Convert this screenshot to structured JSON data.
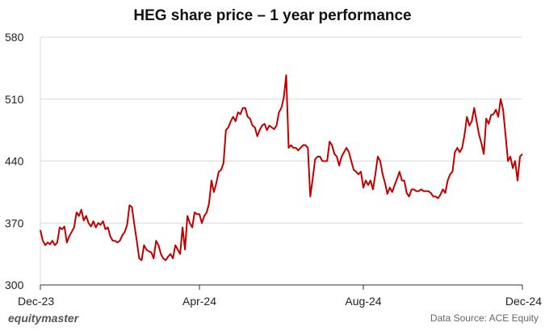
{
  "title": "HEG share price – 1 year performance",
  "brand": "equitymaster",
  "source": "Data Source: ACE Equity",
  "colors": {
    "line": "#c00000",
    "grid": "#d9d9d9",
    "axis": "#333333"
  },
  "chart_data": {
    "type": "line",
    "title": "HEG share price – 1 year performance",
    "xlabel": "",
    "ylabel": "",
    "ylim": [
      300,
      580
    ],
    "yticks": [
      300,
      370,
      440,
      510,
      580
    ],
    "xticks": [
      {
        "label": "Dec-23",
        "t": 0
      },
      {
        "label": "Apr-24",
        "t": 33
      },
      {
        "label": "Aug-24",
        "t": 67
      },
      {
        "label": "Dec-24",
        "t": 100
      }
    ],
    "grid": true,
    "series": [
      {
        "values": [
          [
            0,
            362
          ],
          [
            0.5,
            350
          ],
          [
            1,
            345
          ],
          [
            1.5,
            348
          ],
          [
            2,
            346
          ],
          [
            2.5,
            350
          ],
          [
            3,
            345
          ],
          [
            3.5,
            348
          ],
          [
            4,
            365
          ],
          [
            4.5,
            363
          ],
          [
            5,
            366
          ],
          [
            5.5,
            348
          ],
          [
            6,
            355
          ],
          [
            6.5,
            360
          ],
          [
            7,
            365
          ],
          [
            7.5,
            382
          ],
          [
            8,
            378
          ],
          [
            8.5,
            385
          ],
          [
            9,
            373
          ],
          [
            9.5,
            378
          ],
          [
            10,
            370
          ],
          [
            10.5,
            366
          ],
          [
            11,
            372
          ],
          [
            11.5,
            365
          ],
          [
            12,
            370
          ],
          [
            12.5,
            368
          ],
          [
            13,
            372
          ],
          [
            13.5,
            363
          ],
          [
            14,
            365
          ],
          [
            14.5,
            355
          ],
          [
            15,
            350
          ],
          [
            15.5,
            350
          ],
          [
            16,
            348
          ],
          [
            16.5,
            350
          ],
          [
            17,
            356
          ],
          [
            17.5,
            360
          ],
          [
            18,
            368
          ],
          [
            18.5,
            390
          ],
          [
            19,
            388
          ],
          [
            19.5,
            368
          ],
          [
            20,
            350
          ],
          [
            20.5,
            330
          ],
          [
            21,
            328
          ],
          [
            21.5,
            345
          ],
          [
            22,
            340
          ],
          [
            22.5,
            338
          ],
          [
            23,
            337
          ],
          [
            23.5,
            330
          ],
          [
            24,
            350
          ],
          [
            24.5,
            345
          ],
          [
            25,
            335
          ],
          [
            25.5,
            330
          ],
          [
            26,
            328
          ],
          [
            26.5,
            332
          ],
          [
            27,
            335
          ],
          [
            27.5,
            330
          ],
          [
            28,
            345
          ],
          [
            28.5,
            340
          ],
          [
            29,
            335
          ],
          [
            29.5,
            365
          ],
          [
            30,
            340
          ],
          [
            30.5,
            378
          ],
          [
            31,
            370
          ],
          [
            31.5,
            365
          ],
          [
            32,
            382
          ],
          [
            32.5,
            380
          ],
          [
            33,
            380
          ],
          [
            33.5,
            370
          ],
          [
            34,
            378
          ],
          [
            34.5,
            382
          ],
          [
            35,
            392
          ],
          [
            35.5,
            418
          ],
          [
            36,
            405
          ],
          [
            36.5,
            415
          ],
          [
            37,
            428
          ],
          [
            37.5,
            430
          ],
          [
            38,
            438
          ],
          [
            38.5,
            475
          ],
          [
            39,
            478
          ],
          [
            39.5,
            485
          ],
          [
            40,
            490
          ],
          [
            40.5,
            485
          ],
          [
            41,
            495
          ],
          [
            41.5,
            493
          ],
          [
            42,
            500
          ],
          [
            42.5,
            500
          ],
          [
            43,
            490
          ],
          [
            43.5,
            488
          ],
          [
            44,
            480
          ],
          [
            44.5,
            478
          ],
          [
            45,
            468
          ],
          [
            45.5,
            475
          ],
          [
            46,
            480
          ],
          [
            46.5,
            482
          ],
          [
            47,
            475
          ],
          [
            47.5,
            480
          ],
          [
            48,
            478
          ],
          [
            48.5,
            476
          ],
          [
            49,
            480
          ],
          [
            49.5,
            495
          ],
          [
            50,
            500
          ],
          [
            50.5,
            512
          ],
          [
            51,
            537
          ],
          [
            51.5,
            455
          ],
          [
            52,
            458
          ],
          [
            52.5,
            455
          ],
          [
            53,
            455
          ],
          [
            53.5,
            452
          ],
          [
            54,
            455
          ],
          [
            54.5,
            458
          ],
          [
            55,
            458
          ],
          [
            55.5,
            455
          ],
          [
            56,
            400
          ],
          [
            56.5,
            420
          ],
          [
            57,
            442
          ],
          [
            57.5,
            445
          ],
          [
            58,
            445
          ],
          [
            58.5,
            440
          ],
          [
            59,
            440
          ],
          [
            59.5,
            440
          ],
          [
            60,
            462
          ],
          [
            60.5,
            458
          ],
          [
            61,
            448
          ],
          [
            61.5,
            445
          ],
          [
            62,
            435
          ],
          [
            62.5,
            445
          ],
          [
            63,
            450
          ],
          [
            63.5,
            455
          ],
          [
            64,
            450
          ],
          [
            64.5,
            440
          ],
          [
            65,
            430
          ],
          [
            65.5,
            428
          ],
          [
            66,
            425
          ],
          [
            66.5,
            428
          ],
          [
            67,
            410
          ],
          [
            67.5,
            418
          ],
          [
            68,
            413
          ],
          [
            68.5,
            418
          ],
          [
            69,
            408
          ],
          [
            69.5,
            425
          ],
          [
            70,
            445
          ],
          [
            70.5,
            440
          ],
          [
            71,
            425
          ],
          [
            71.5,
            415
          ],
          [
            72,
            403
          ],
          [
            72.5,
            410
          ],
          [
            73,
            405
          ],
          [
            73.5,
            413
          ],
          [
            74,
            420
          ],
          [
            74.5,
            428
          ],
          [
            75,
            418
          ],
          [
            75.5,
            418
          ],
          [
            76,
            404
          ],
          [
            76.5,
            400
          ],
          [
            77,
            408
          ],
          [
            77.5,
            408
          ],
          [
            78,
            406
          ],
          [
            78.5,
            406
          ],
          [
            79,
            408
          ],
          [
            79.5,
            406
          ],
          [
            80,
            406
          ],
          [
            80.5,
            406
          ],
          [
            81,
            404
          ],
          [
            81.5,
            400
          ],
          [
            82,
            400
          ],
          [
            82.5,
            398
          ],
          [
            83,
            402
          ],
          [
            83.5,
            408
          ],
          [
            84,
            404
          ],
          [
            84.5,
            418
          ],
          [
            85,
            425
          ],
          [
            85.5,
            428
          ],
          [
            86,
            450
          ],
          [
            86.5,
            455
          ],
          [
            87,
            450
          ],
          [
            87.5,
            455
          ],
          [
            88,
            470
          ],
          [
            88.5,
            490
          ],
          [
            89,
            480
          ],
          [
            89.5,
            485
          ],
          [
            90,
            500
          ],
          [
            90.5,
            485
          ],
          [
            91,
            470
          ],
          [
            91.5,
            460
          ],
          [
            92,
            448
          ],
          [
            92.5,
            488
          ],
          [
            93,
            482
          ],
          [
            93.5,
            492
          ],
          [
            94,
            493
          ],
          [
            94.5,
            498
          ],
          [
            95,
            490
          ],
          [
            95.5,
            510
          ],
          [
            96,
            498
          ],
          [
            96.5,
            470
          ],
          [
            97,
            440
          ],
          [
            97.5,
            445
          ],
          [
            98,
            432
          ],
          [
            98.5,
            440
          ],
          [
            99,
            418
          ],
          [
            99.5,
            445
          ],
          [
            100,
            448
          ]
        ]
      }
    ]
  }
}
